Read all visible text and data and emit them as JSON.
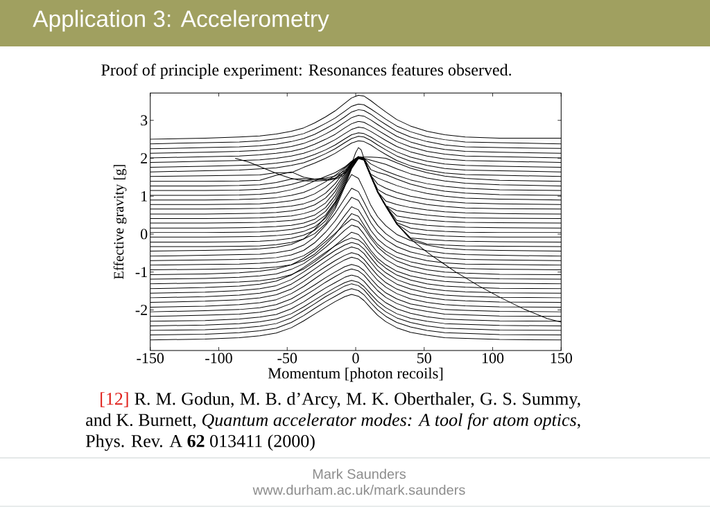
{
  "chart_data": {
    "type": "line",
    "title": "Application 3: Accelerometry",
    "subtitle": "Proof of principle experiment: Resonances features observed.",
    "xlabel": "Momentum [photon recoils]",
    "ylabel": "Effective gravity [g]",
    "annotations": [
      "[12]",
      "R. M. Godun, M. B. d’Arcy, M. K. Oberthaler, G. S. Summy, and K. Burnett, *Quantum accelerator modes: A tool for atom optics*, Phys. Rev. A **62** 013411 (2000)",
      "Mark Saunders",
      "www.durham.ac.uk/mark.saunders"
    ],
    "xlim": [
      -150,
      150
    ],
    "ylim": [
      -3.07,
      3.72
    ],
    "xticks": [
      -150,
      -100,
      -50,
      0,
      50,
      100,
      150
    ],
    "yticks": [
      -2,
      -1,
      0,
      1,
      2,
      3
    ],
    "x": [
      -150,
      -110,
      -85,
      -70,
      -58,
      -47,
      -38,
      -30,
      -22,
      -15,
      -8,
      -3,
      2,
      6,
      11,
      16,
      22,
      30,
      40,
      52,
      65,
      80,
      105,
      150
    ],
    "series": [
      {
        "color": "#000000",
        "values": [
          2.5,
          2.53,
          2.56,
          2.59,
          2.64,
          2.71,
          2.8,
          2.93,
          3.09,
          3.25,
          3.45,
          3.59,
          3.66,
          3.64,
          3.52,
          3.38,
          3.22,
          3.02,
          2.85,
          2.71,
          2.62,
          2.56,
          2.53,
          2.53
        ]
      },
      {
        "color": "#000000",
        "values": [
          2.38,
          2.41,
          2.43,
          2.46,
          2.51,
          2.57,
          2.65,
          2.77,
          2.92,
          3.06,
          3.24,
          3.37,
          3.43,
          3.41,
          3.3,
          3.18,
          3.03,
          2.85,
          2.7,
          2.57,
          2.49,
          2.43,
          2.41,
          2.38
        ]
      },
      {
        "color": "#000000",
        "values": [
          2.25,
          2.28,
          2.3,
          2.33,
          2.37,
          2.44,
          2.52,
          2.63,
          2.78,
          2.92,
          3.09,
          3.22,
          3.28,
          3.26,
          3.16,
          3.03,
          2.89,
          2.71,
          2.56,
          2.44,
          2.35,
          2.3,
          2.28,
          2.26
        ]
      },
      {
        "color": "#000000",
        "values": [
          2.13,
          2.16,
          2.18,
          2.21,
          2.25,
          2.31,
          2.39,
          2.5,
          2.64,
          2.78,
          2.95,
          3.07,
          3.13,
          3.11,
          3.01,
          2.89,
          2.75,
          2.58,
          2.43,
          2.31,
          2.23,
          2.18,
          2.16,
          2.13
        ]
      },
      {
        "color": "#000000",
        "values": [
          2.01,
          2.04,
          2.06,
          2.09,
          2.13,
          2.18,
          2.26,
          2.37,
          2.5,
          2.63,
          2.8,
          2.91,
          2.97,
          2.95,
          2.85,
          2.74,
          2.61,
          2.44,
          2.3,
          2.18,
          2.11,
          2.06,
          2.04,
          2.01
        ]
      },
      {
        "color": "#000000",
        "values": [
          1.89,
          1.92,
          1.94,
          1.96,
          2.0,
          2.06,
          2.13,
          2.23,
          2.36,
          2.49,
          2.65,
          2.76,
          2.82,
          2.8,
          2.71,
          2.6,
          2.47,
          2.31,
          2.17,
          2.06,
          1.98,
          1.94,
          1.92,
          1.89
        ]
      },
      {
        "color": "#000000",
        "values": [
          1.76,
          1.79,
          1.81,
          1.83,
          1.87,
          1.92,
          2.0,
          2.1,
          2.22,
          2.35,
          2.51,
          2.62,
          2.67,
          2.65,
          2.56,
          2.45,
          2.32,
          2.17,
          2.03,
          1.92,
          1.85,
          1.81,
          1.79,
          1.76
        ]
      },
      {
        "color": "#000000",
        "values": [
          1.64,
          1.67,
          1.69,
          1.72,
          1.75,
          1.81,
          1.88,
          1.99,
          2.12,
          2.25,
          2.41,
          2.52,
          2.58,
          2.56,
          2.47,
          2.35,
          2.22,
          2.06,
          1.92,
          1.81,
          1.73,
          1.69,
          1.67,
          1.64
        ]
      },
      {
        "color": "#000000",
        "values": [
          1.52,
          1.54,
          1.55,
          1.56,
          1.62,
          1.62,
          1.76,
          1.87,
          2.0,
          2.13,
          2.29,
          2.4,
          2.46,
          2.44,
          2.35,
          2.23,
          2.1,
          1.94,
          1.8,
          1.69,
          1.61,
          1.57,
          1.55,
          1.52
        ]
      },
      {
        "color": "#000000",
        "values": [
          1.39,
          1.39,
          1.4,
          1.42,
          1.55,
          1.64,
          1.5,
          1.45,
          1.44,
          1.47,
          1.62,
          1.85,
          2.03,
          2.03,
          2.03,
          2.02,
          2.0,
          1.88,
          1.74,
          1.62,
          1.53,
          1.47,
          1.42,
          1.39
        ]
      },
      {
        "color": "#000000",
        "values": [
          1.27,
          1.27,
          1.28,
          1.3,
          1.36,
          1.45,
          1.46,
          1.44,
          1.44,
          1.48,
          1.62,
          1.86,
          2.04,
          2.0,
          1.95,
          1.9,
          1.84,
          1.72,
          1.59,
          1.48,
          1.4,
          1.34,
          1.3,
          1.27
        ]
      },
      {
        "color": "#000000",
        "values": [
          1.15,
          1.15,
          1.16,
          1.18,
          1.23,
          1.31,
          1.4,
          1.45,
          1.48,
          1.53,
          1.67,
          1.88,
          2.04,
          2.0,
          1.85,
          1.76,
          1.66,
          1.55,
          1.43,
          1.33,
          1.26,
          1.21,
          1.17,
          1.15
        ]
      },
      {
        "color": "#000000",
        "values": [
          1.02,
          1.02,
          1.03,
          1.05,
          1.09,
          1.17,
          1.27,
          1.4,
          1.52,
          1.62,
          1.77,
          1.92,
          2.04,
          2.0,
          1.7,
          1.63,
          1.57,
          1.45,
          1.32,
          1.21,
          1.13,
          1.08,
          1.04,
          1.02
        ]
      },
      {
        "color": "#000000",
        "values": [
          0.9,
          0.9,
          0.91,
          0.93,
          0.96,
          1.02,
          1.1,
          1.22,
          1.38,
          1.55,
          1.75,
          1.92,
          2.04,
          2.0,
          1.58,
          1.48,
          1.39,
          1.28,
          1.17,
          1.07,
          1.0,
          0.95,
          0.92,
          0.9
        ]
      },
      {
        "color": "#000000",
        "values": [
          0.78,
          0.78,
          0.79,
          0.8,
          0.83,
          0.88,
          0.95,
          1.06,
          1.24,
          1.45,
          1.72,
          1.91,
          2.04,
          2.0,
          1.55,
          1.32,
          1.21,
          1.1,
          1.0,
          0.92,
          0.86,
          0.82,
          0.8,
          0.78
        ]
      },
      {
        "color": "#000000",
        "values": [
          0.66,
          0.66,
          0.67,
          0.68,
          0.7,
          0.74,
          0.8,
          0.9,
          1.08,
          1.33,
          1.66,
          1.89,
          2.03,
          2.0,
          1.55,
          1.18,
          1.05,
          0.95,
          0.86,
          0.78,
          0.73,
          0.69,
          0.67,
          0.66
        ]
      },
      {
        "color": "#000000",
        "values": [
          0.53,
          0.53,
          0.54,
          0.55,
          0.57,
          0.61,
          0.67,
          0.77,
          0.95,
          1.22,
          1.6,
          1.87,
          2.03,
          2.0,
          1.55,
          1.12,
          0.87,
          0.78,
          0.7,
          0.64,
          0.59,
          0.56,
          0.54,
          0.53
        ]
      },
      {
        "color": "#000000",
        "values": [
          0.41,
          0.41,
          0.42,
          0.43,
          0.45,
          0.48,
          0.54,
          0.63,
          0.82,
          1.12,
          1.55,
          1.85,
          2.02,
          1.98,
          1.55,
          1.12,
          0.75,
          0.62,
          0.56,
          0.5,
          0.46,
          0.43,
          0.42,
          0.41
        ]
      },
      {
        "color": "#000000",
        "values": [
          0.29,
          0.29,
          0.3,
          0.31,
          0.33,
          0.36,
          0.41,
          0.5,
          0.7,
          1.02,
          1.5,
          1.83,
          2.02,
          1.98,
          1.55,
          1.12,
          0.75,
          0.48,
          0.42,
          0.37,
          0.33,
          0.31,
          0.3,
          0.29
        ]
      },
      {
        "color": "#000000",
        "values": [
          0.16,
          0.16,
          0.17,
          0.18,
          0.2,
          0.23,
          0.29,
          0.39,
          0.6,
          0.93,
          1.45,
          1.81,
          2.01,
          1.97,
          1.54,
          1.12,
          0.75,
          0.36,
          0.28,
          0.23,
          0.2,
          0.18,
          0.17,
          0.16
        ]
      },
      {
        "color": "#000000",
        "values": [
          0.04,
          0.04,
          0.05,
          0.06,
          0.08,
          0.12,
          0.18,
          0.29,
          0.5,
          0.85,
          1.4,
          1.79,
          2.01,
          1.97,
          1.54,
          1.12,
          0.75,
          0.3,
          0.16,
          0.1,
          0.07,
          0.05,
          0.04,
          0.04
        ]
      },
      {
        "color": "#000000",
        "values": [
          -0.08,
          -0.08,
          -0.07,
          -0.06,
          -0.04,
          0.0,
          0.07,
          0.19,
          0.42,
          0.78,
          1.35,
          1.77,
          2.0,
          1.96,
          1.53,
          1.11,
          0.74,
          0.27,
          0.03,
          -0.02,
          -0.05,
          -0.07,
          -0.08,
          -0.08
        ]
      },
      {
        "color": "#000000",
        "values": [
          -0.21,
          -0.21,
          -0.2,
          -0.19,
          -0.16,
          -0.11,
          -0.03,
          0.1,
          0.35,
          0.72,
          1.3,
          1.75,
          2.0,
          1.96,
          1.53,
          1.11,
          0.74,
          0.27,
          -0.1,
          -0.14,
          -0.17,
          -0.19,
          -0.2,
          -0.21
        ]
      },
      {
        "color": "#000000",
        "values": [
          -0.33,
          -0.33,
          -0.32,
          -0.31,
          -0.28,
          -0.22,
          -0.13,
          0.01,
          0.27,
          0.66,
          1.25,
          1.72,
          1.99,
          1.95,
          1.52,
          1.1,
          0.73,
          0.26,
          -0.12,
          -0.26,
          -0.29,
          -0.31,
          -0.32,
          -0.33
        ]
      },
      {
        "color": "#000000",
        "values": [
          -0.45,
          -0.43,
          -0.41,
          -0.39,
          -0.35,
          -0.27,
          -0.13,
          0.12,
          0.46,
          0.82,
          1.27,
          1.57,
          1.47,
          1.17,
          0.76,
          0.46,
          0.22,
          -0.01,
          -0.17,
          -0.29,
          -0.37,
          -0.41,
          -0.43,
          -0.45
        ]
      },
      {
        "color": "#000000",
        "values": [
          -0.58,
          -0.56,
          -0.54,
          -0.53,
          -0.49,
          -0.42,
          -0.29,
          -0.08,
          0.23,
          0.55,
          0.94,
          1.21,
          1.12,
          0.85,
          0.49,
          0.23,
          0.01,
          -0.19,
          -0.33,
          -0.44,
          -0.51,
          -0.54,
          -0.56,
          -0.58
        ]
      },
      {
        "color": "#000000",
        "values": [
          -0.7,
          -0.68,
          -0.67,
          -0.65,
          -0.62,
          -0.55,
          -0.43,
          -0.23,
          0.05,
          0.35,
          0.72,
          0.97,
          0.89,
          0.64,
          0.3,
          0.05,
          -0.15,
          -0.33,
          -0.47,
          -0.57,
          -0.63,
          -0.67,
          -0.68,
          -0.7
        ]
      },
      {
        "color": "#000000",
        "values": [
          -0.82,
          -0.8,
          -0.79,
          -0.77,
          -0.74,
          -0.68,
          -0.57,
          -0.39,
          -0.13,
          0.15,
          0.49,
          0.72,
          0.64,
          0.41,
          0.1,
          -0.13,
          -0.31,
          -0.48,
          -0.6,
          -0.7,
          -0.76,
          -0.79,
          -0.8,
          -0.82
        ]
      },
      {
        "color": "#000000",
        "values": [
          -0.94,
          -0.93,
          -0.91,
          -0.9,
          -0.87,
          -0.81,
          -0.7,
          -0.53,
          -0.27,
          -0.01,
          0.32,
          0.54,
          0.47,
          0.24,
          -0.05,
          -0.27,
          -0.45,
          -0.61,
          -0.73,
          -0.82,
          -0.88,
          -0.91,
          -0.93,
          -0.94
        ]
      },
      {
        "color": "#000000",
        "values": [
          -1.07,
          -1.05,
          -1.02,
          -0.98,
          -0.92,
          -0.81,
          -0.64,
          -0.44,
          -0.2,
          0.02,
          0.25,
          0.4,
          0.33,
          0.16,
          -0.11,
          -0.34,
          -0.53,
          -0.71,
          -0.84,
          -0.94,
          -1.0,
          -1.03,
          -1.06,
          -1.07
        ]
      },
      {
        "color": "#000000",
        "values": [
          -1.19,
          -1.17,
          -1.14,
          -1.1,
          -1.05,
          -0.93,
          -0.78,
          -0.58,
          -0.35,
          -0.13,
          0.1,
          0.24,
          0.18,
          0.0,
          -0.26,
          -0.48,
          -0.67,
          -0.84,
          -0.97,
          -1.06,
          -1.13,
          -1.15,
          -1.18,
          -1.19
        ]
      },
      {
        "color": "#000000",
        "values": [
          -1.31,
          -1.29,
          -1.26,
          -1.23,
          -1.17,
          -1.07,
          -0.92,
          -0.73,
          -0.51,
          -0.3,
          -0.09,
          0.05,
          -0.01,
          -0.17,
          -0.43,
          -0.64,
          -0.81,
          -0.98,
          -1.1,
          -1.19,
          -1.25,
          -1.28,
          -1.3,
          -1.31
        ]
      },
      {
        "color": "#000000",
        "values": [
          -1.44,
          -1.41,
          -1.37,
          -1.32,
          -1.24,
          -1.08,
          -0.88,
          -0.68,
          -0.48,
          -0.31,
          -0.17,
          -0.1,
          -0.15,
          -0.27,
          -0.5,
          -0.72,
          -0.9,
          -1.08,
          -1.21,
          -1.31,
          -1.37,
          -1.4,
          -1.43,
          -1.44
        ]
      },
      {
        "color": "#000000",
        "values": [
          -1.56,
          -1.53,
          -1.49,
          -1.44,
          -1.36,
          -1.2,
          -1.0,
          -0.8,
          -0.6,
          -0.43,
          -0.29,
          -0.22,
          -0.27,
          -0.39,
          -0.62,
          -0.84,
          -1.02,
          -1.2,
          -1.33,
          -1.43,
          -1.49,
          -1.52,
          -1.55,
          -1.56
        ]
      },
      {
        "color": "#000000",
        "values": [
          -1.68,
          -1.65,
          -1.61,
          -1.56,
          -1.48,
          -1.32,
          -1.12,
          -0.92,
          -0.72,
          -0.55,
          -0.41,
          -0.34,
          -0.39,
          -0.51,
          -0.74,
          -0.96,
          -1.14,
          -1.32,
          -1.45,
          -1.55,
          -1.61,
          -1.64,
          -1.67,
          -1.68
        ]
      },
      {
        "color": "#000000",
        "values": [
          -1.8,
          -1.77,
          -1.73,
          -1.68,
          -1.6,
          -1.45,
          -1.25,
          -1.05,
          -0.86,
          -0.7,
          -0.56,
          -0.49,
          -0.54,
          -0.66,
          -0.88,
          -1.09,
          -1.28,
          -1.45,
          -1.58,
          -1.67,
          -1.73,
          -1.76,
          -1.79,
          -1.8
        ]
      },
      {
        "color": "#000000",
        "values": [
          -1.93,
          -1.9,
          -1.86,
          -1.81,
          -1.73,
          -1.57,
          -1.38,
          -1.18,
          -0.98,
          -0.82,
          -0.68,
          -0.61,
          -0.66,
          -0.78,
          -1.01,
          -1.22,
          -1.4,
          -1.57,
          -1.71,
          -1.8,
          -1.86,
          -1.89,
          -1.92,
          -1.93
        ]
      },
      {
        "color": "#000000",
        "values": [
          -2.05,
          -2.02,
          -1.99,
          -1.94,
          -1.86,
          -1.71,
          -1.52,
          -1.34,
          -1.15,
          -1.0,
          -0.86,
          -0.8,
          -0.85,
          -0.96,
          -1.17,
          -1.37,
          -1.55,
          -1.71,
          -1.84,
          -1.92,
          -1.99,
          -2.01,
          -2.04,
          -2.05
        ]
      },
      {
        "color": "#000000",
        "values": [
          -2.17,
          -2.14,
          -2.11,
          -2.06,
          -1.98,
          -1.83,
          -1.64,
          -1.46,
          -1.27,
          -1.12,
          -0.98,
          -0.92,
          -0.97,
          -1.08,
          -1.29,
          -1.49,
          -1.67,
          -1.83,
          -1.96,
          -2.04,
          -2.11,
          -2.13,
          -2.16,
          -2.17
        ]
      },
      {
        "color": "#000000",
        "values": [
          -2.3,
          -2.28,
          -2.24,
          -2.19,
          -2.12,
          -1.97,
          -1.79,
          -1.6,
          -1.42,
          -1.28,
          -1.14,
          -1.08,
          -1.13,
          -1.24,
          -1.45,
          -1.64,
          -1.81,
          -1.97,
          -2.09,
          -2.18,
          -2.24,
          -2.26,
          -2.29,
          -2.3
        ]
      },
      {
        "color": "#000000",
        "values": [
          -2.42,
          -2.4,
          -2.36,
          -2.31,
          -2.24,
          -2.1,
          -1.92,
          -1.74,
          -1.56,
          -1.41,
          -1.28,
          -1.22,
          -1.27,
          -1.38,
          -1.58,
          -1.77,
          -1.94,
          -2.1,
          -2.22,
          -2.3,
          -2.36,
          -2.38,
          -2.41,
          -2.42
        ]
      },
      {
        "color": "#000000",
        "values": [
          -2.54,
          -2.52,
          -2.48,
          -2.43,
          -2.36,
          -2.21,
          -2.02,
          -1.84,
          -1.65,
          -1.51,
          -1.37,
          -1.31,
          -1.36,
          -1.47,
          -1.68,
          -1.88,
          -2.05,
          -2.21,
          -2.33,
          -2.42,
          -2.48,
          -2.5,
          -2.53,
          -2.54
        ]
      },
      {
        "color": "#000000",
        "values": [
          -2.66,
          -2.64,
          -2.6,
          -2.55,
          -2.48,
          -2.33,
          -2.15,
          -1.96,
          -1.78,
          -1.64,
          -1.5,
          -1.44,
          -1.49,
          -1.6,
          -1.81,
          -2.0,
          -2.17,
          -2.33,
          -2.45,
          -2.54,
          -2.6,
          -2.62,
          -2.65,
          -2.66
        ]
      },
      {
        "color": "#000000",
        "values": [
          -2.79,
          -2.77,
          -2.73,
          -2.68,
          -2.61,
          -2.47,
          -2.29,
          -2.11,
          -1.93,
          -1.78,
          -1.65,
          -1.59,
          -1.64,
          -1.75,
          -1.95,
          -2.14,
          -2.31,
          -2.47,
          -2.59,
          -2.67,
          -2.73,
          -2.75,
          -2.78,
          -2.79
        ]
      },
      {
        "color": "#000000",
        "x": [
          -88,
          -78,
          -70,
          -62,
          -55,
          -48,
          -42,
          -35,
          -28,
          -20,
          -14,
          -9,
          -5,
          -2,
          0,
          2,
          4,
          6,
          10,
          15,
          20,
          25,
          30,
          39,
          50,
          56,
          65,
          73,
          80,
          90,
          106,
          123,
          140,
          150
        ],
        "values": [
          2.0,
          1.9,
          1.78,
          1.66,
          1.56,
          1.48,
          1.43,
          1.4,
          1.4,
          1.42,
          1.46,
          1.55,
          1.72,
          1.95,
          2.15,
          2.28,
          2.22,
          2.0,
          1.62,
          1.2,
          0.85,
          0.55,
          0.27,
          -0.1,
          -0.42,
          -0.58,
          -0.8,
          -1.0,
          -1.15,
          -1.37,
          -1.68,
          -1.98,
          -2.23,
          -2.32
        ]
      }
    ]
  }
}
